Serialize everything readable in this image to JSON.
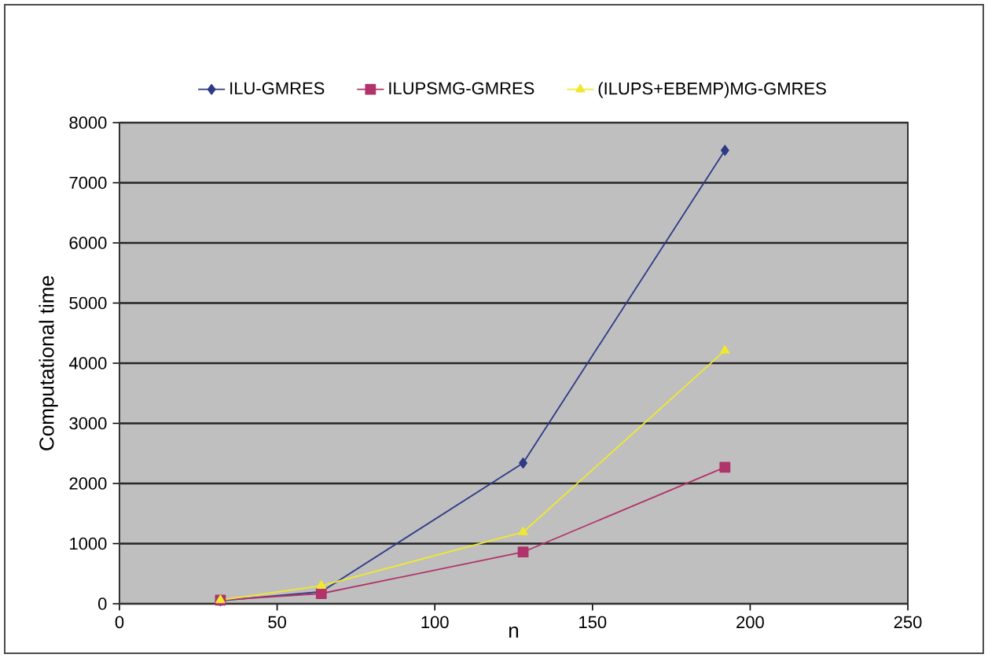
{
  "chart_data": {
    "type": "line",
    "xlabel": "n",
    "ylabel": "Computational time",
    "x": [
      32,
      64,
      128,
      192
    ],
    "series": [
      {
        "name": "ILU-GMRES",
        "color": "#2e3a87",
        "marker": "diamond",
        "values": [
          50,
          200,
          2340,
          7540
        ]
      },
      {
        "name": "ILUPSMG-GMRES",
        "color": "#b0336a",
        "marker": "square",
        "values": [
          60,
          170,
          860,
          2270
        ]
      },
      {
        "name": "(ILUPS+EBEMP)MG-GMRES",
        "color": "#f0e830",
        "marker": "triangle",
        "values": [
          60,
          300,
          1190,
          4210
        ]
      }
    ],
    "xlim": [
      0,
      250
    ],
    "ylim": [
      0,
      8000
    ],
    "xticks": [
      0,
      50,
      100,
      150,
      200,
      250
    ],
    "yticks": [
      0,
      1000,
      2000,
      3000,
      4000,
      5000,
      6000,
      7000,
      8000
    ],
    "grid": "y",
    "legend": "top"
  }
}
